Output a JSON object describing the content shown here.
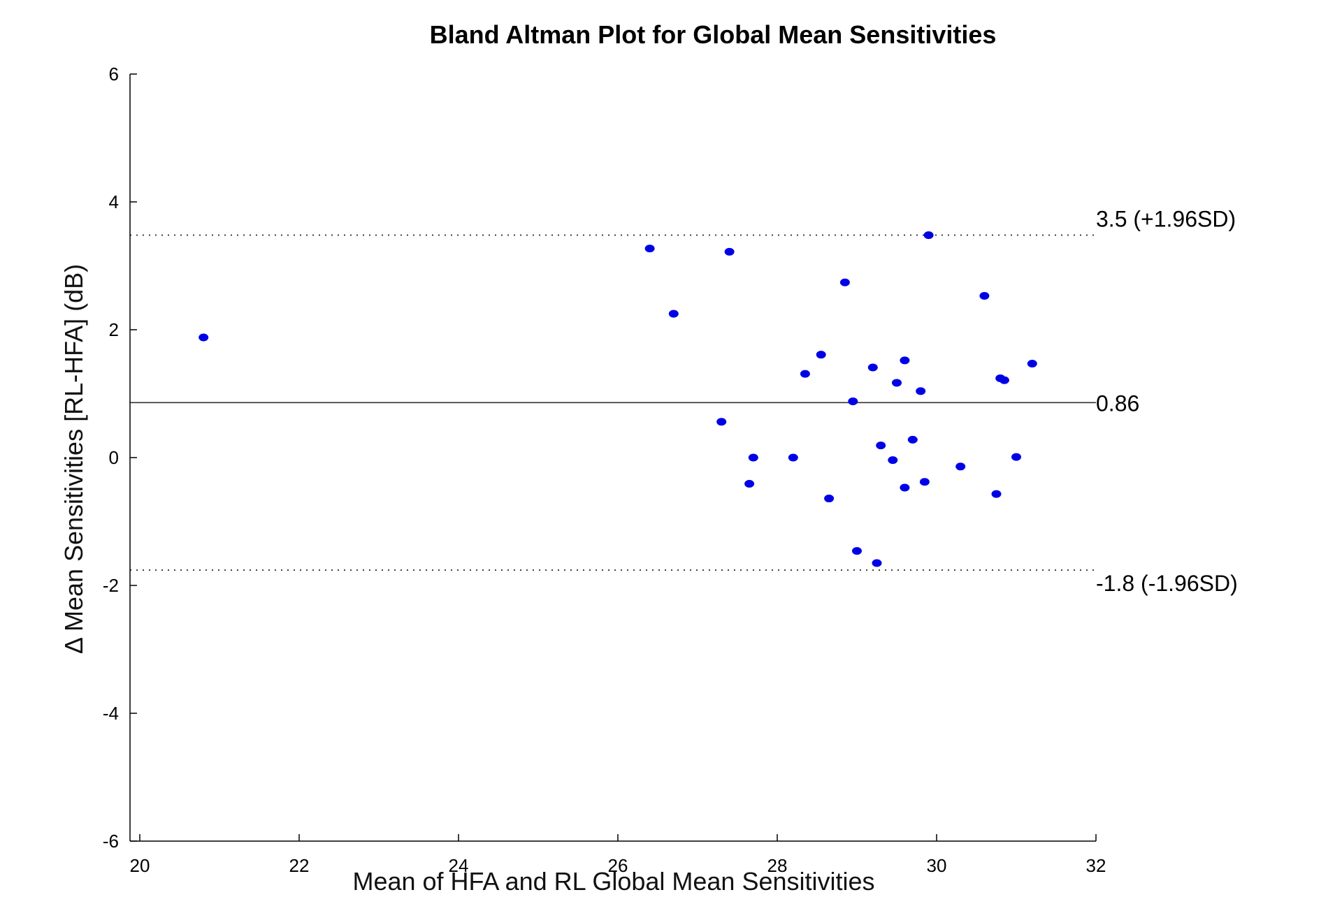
{
  "chart_data": {
    "type": "scatter",
    "title": "Bland Altman Plot for Global Mean Sensitivities",
    "xlabel": "Mean of HFA and RL Global Mean Sensitivities",
    "ylabel": "Δ Mean Sensitivities [RL-HFA] (dB)",
    "xlim": [
      20,
      32
    ],
    "ylim": [
      -6,
      6
    ],
    "xticks": [
      "20",
      "22",
      "24",
      "26",
      "28",
      "30",
      "32"
    ],
    "yticks": [
      "6",
      "4",
      "2",
      "0",
      "-2",
      "-4",
      "-6"
    ],
    "grid": false,
    "point_color": "#0000e6",
    "points": [
      {
        "x": 20.8,
        "y": 1.88
      },
      {
        "x": 26.4,
        "y": 3.27
      },
      {
        "x": 26.7,
        "y": 2.25
      },
      {
        "x": 27.3,
        "y": 0.56
      },
      {
        "x": 27.4,
        "y": 3.22
      },
      {
        "x": 27.65,
        "y": -0.41
      },
      {
        "x": 27.7,
        "y": 0.0
      },
      {
        "x": 28.2,
        "y": 0.0
      },
      {
        "x": 28.35,
        "y": 1.31
      },
      {
        "x": 28.55,
        "y": 1.61
      },
      {
        "x": 28.65,
        "y": -0.64
      },
      {
        "x": 28.85,
        "y": 2.74
      },
      {
        "x": 28.95,
        "y": 0.88
      },
      {
        "x": 29.0,
        "y": -1.46
      },
      {
        "x": 29.2,
        "y": 1.41
      },
      {
        "x": 29.25,
        "y": -1.65
      },
      {
        "x": 29.3,
        "y": 0.19
      },
      {
        "x": 29.45,
        "y": -0.04
      },
      {
        "x": 29.5,
        "y": 1.17
      },
      {
        "x": 29.6,
        "y": -0.47
      },
      {
        "x": 29.6,
        "y": 1.52
      },
      {
        "x": 29.7,
        "y": 0.28
      },
      {
        "x": 29.8,
        "y": 1.04
      },
      {
        "x": 29.85,
        "y": -0.38
      },
      {
        "x": 29.9,
        "y": 3.48
      },
      {
        "x": 30.3,
        "y": -0.14
      },
      {
        "x": 30.6,
        "y": 2.53
      },
      {
        "x": 30.75,
        "y": -0.57
      },
      {
        "x": 30.8,
        "y": 1.24
      },
      {
        "x": 30.85,
        "y": 1.21
      },
      {
        "x": 31.0,
        "y": 0.01
      },
      {
        "x": 31.2,
        "y": 1.47
      }
    ],
    "reference_lines": [
      {
        "y": 3.48,
        "style": "dotted",
        "label": "3.5 (+1.96SD)"
      },
      {
        "y": 0.86,
        "style": "solid",
        "label": "0.86"
      },
      {
        "y": -1.76,
        "style": "dotted",
        "label": "-1.8 (-1.96SD)"
      }
    ]
  }
}
